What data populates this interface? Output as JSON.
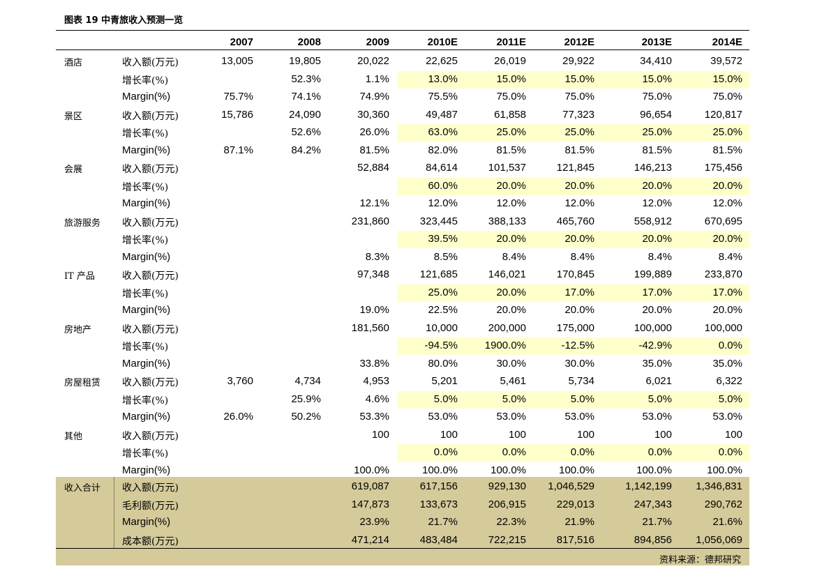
{
  "title": "图表 19  中青旅收入预测一览",
  "columns": [
    "2007",
    "2008",
    "2009",
    "2010E",
    "2011E",
    "2012E",
    "2013E",
    "2014E"
  ],
  "rows": [
    {
      "seg": "酒店",
      "metric": "收入额(万元)",
      "vals": [
        "13,005",
        "19,805",
        "20,022",
        "22,625",
        "26,019",
        "29,922",
        "34,410",
        "39,572"
      ],
      "hl": false
    },
    {
      "seg": "",
      "metric": "增长率(%)",
      "vals": [
        "",
        "52.3%",
        "1.1%",
        "13.0%",
        "15.0%",
        "15.0%",
        "15.0%",
        "15.0%"
      ],
      "hl": true
    },
    {
      "seg": "",
      "metric": "Margin(%)",
      "vals": [
        "75.7%",
        "74.1%",
        "74.9%",
        "75.5%",
        "75.0%",
        "75.0%",
        "75.0%",
        "75.0%"
      ],
      "hl": false
    },
    {
      "seg": "景区",
      "metric": "收入额(万元)",
      "vals": [
        "15,786",
        "24,090",
        "30,360",
        "49,487",
        "61,858",
        "77,323",
        "96,654",
        "120,817"
      ],
      "hl": false
    },
    {
      "seg": "",
      "metric": "增长率(%)",
      "vals": [
        "",
        "52.6%",
        "26.0%",
        "63.0%",
        "25.0%",
        "25.0%",
        "25.0%",
        "25.0%"
      ],
      "hl": true
    },
    {
      "seg": "",
      "metric": "Margin(%)",
      "vals": [
        "87.1%",
        "84.2%",
        "81.5%",
        "82.0%",
        "81.5%",
        "81.5%",
        "81.5%",
        "81.5%"
      ],
      "hl": false
    },
    {
      "seg": "会展",
      "metric": "收入额(万元)",
      "vals": [
        "",
        "",
        "52,884",
        "84,614",
        "101,537",
        "121,845",
        "146,213",
        "175,456"
      ],
      "hl": false
    },
    {
      "seg": "",
      "metric": "增长率(%)",
      "vals": [
        "",
        "",
        "",
        "60.0%",
        "20.0%",
        "20.0%",
        "20.0%",
        "20.0%"
      ],
      "hl": true
    },
    {
      "seg": "",
      "metric": "Margin(%)",
      "vals": [
        "",
        "",
        "12.1%",
        "12.0%",
        "12.0%",
        "12.0%",
        "12.0%",
        "12.0%"
      ],
      "hl": false
    },
    {
      "seg": "旅游服务",
      "metric": "收入额(万元)",
      "vals": [
        "",
        "",
        "231,860",
        "323,445",
        "388,133",
        "465,760",
        "558,912",
        "670,695"
      ],
      "hl": false
    },
    {
      "seg": "",
      "metric": "增长率(%)",
      "vals": [
        "",
        "",
        "",
        "39.5%",
        "20.0%",
        "20.0%",
        "20.0%",
        "20.0%"
      ],
      "hl": true
    },
    {
      "seg": "",
      "metric": "Margin(%)",
      "vals": [
        "",
        "",
        "8.3%",
        "8.5%",
        "8.4%",
        "8.4%",
        "8.4%",
        "8.4%"
      ],
      "hl": false
    },
    {
      "seg": "IT 产品",
      "metric": "收入额(万元)",
      "vals": [
        "",
        "",
        "97,348",
        "121,685",
        "146,021",
        "170,845",
        "199,889",
        "233,870"
      ],
      "hl": false
    },
    {
      "seg": "",
      "metric": "增长率(%)",
      "vals": [
        "",
        "",
        "",
        "25.0%",
        "20.0%",
        "17.0%",
        "17.0%",
        "17.0%"
      ],
      "hl": true
    },
    {
      "seg": "",
      "metric": "Margin(%)",
      "vals": [
        "",
        "",
        "19.0%",
        "22.5%",
        "20.0%",
        "20.0%",
        "20.0%",
        "20.0%"
      ],
      "hl": false
    },
    {
      "seg": "房地产",
      "metric": "收入额(万元)",
      "vals": [
        "",
        "",
        "181,560",
        "10,000",
        "200,000",
        "175,000",
        "100,000",
        "100,000"
      ],
      "hl": false
    },
    {
      "seg": "",
      "metric": "增长率(%)",
      "vals": [
        "",
        "",
        "",
        "-94.5%",
        "1900.0%",
        "-12.5%",
        "-42.9%",
        "0.0%"
      ],
      "hl": true
    },
    {
      "seg": "",
      "metric": "Margin(%)",
      "vals": [
        "",
        "",
        "33.8%",
        "80.0%",
        "30.0%",
        "30.0%",
        "35.0%",
        "35.0%"
      ],
      "hl": false
    },
    {
      "seg": "房屋租赁",
      "metric": "收入额(万元)",
      "vals": [
        "3,760",
        "4,734",
        "4,953",
        "5,201",
        "5,461",
        "5,734",
        "6,021",
        "6,322"
      ],
      "hl": false
    },
    {
      "seg": "",
      "metric": "增长率(%)",
      "vals": [
        "",
        "25.9%",
        "4.6%",
        "5.0%",
        "5.0%",
        "5.0%",
        "5.0%",
        "5.0%"
      ],
      "hl": true
    },
    {
      "seg": "",
      "metric": "Margin(%)",
      "vals": [
        "26.0%",
        "50.2%",
        "53.3%",
        "53.0%",
        "53.0%",
        "53.0%",
        "53.0%",
        "53.0%"
      ],
      "hl": false
    },
    {
      "seg": "其他",
      "metric": "收入额(万元)",
      "vals": [
        "",
        "",
        "100",
        "100",
        "100",
        "100",
        "100",
        "100"
      ],
      "hl": false
    },
    {
      "seg": "",
      "metric": "增长率(%)",
      "vals": [
        "",
        "",
        "",
        "0.0%",
        "0.0%",
        "0.0%",
        "0.0%",
        "0.0%"
      ],
      "hl": true
    },
    {
      "seg": "",
      "metric": "Margin(%)",
      "vals": [
        "",
        "",
        "100.0%",
        "100.0%",
        "100.0%",
        "100.0%",
        "100.0%",
        "100.0%"
      ],
      "hl": false
    }
  ],
  "totals": [
    {
      "seg": "收入合计",
      "metric": "收入额(万元)",
      "vals": [
        "",
        "",
        "619,087",
        "617,156",
        "929,130",
        "1,046,529",
        "1,142,199",
        "1,346,831"
      ]
    },
    {
      "seg": "",
      "metric": "毛利额(万元)",
      "vals": [
        "",
        "",
        "147,873",
        "133,673",
        "206,915",
        "229,013",
        "247,343",
        "290,762"
      ]
    },
    {
      "seg": "",
      "metric": "Margin(%)",
      "vals": [
        "",
        "",
        "23.9%",
        "21.7%",
        "22.3%",
        "21.9%",
        "21.7%",
        "21.6%"
      ]
    },
    {
      "seg": "",
      "metric": "成本额(万元)",
      "vals": [
        "",
        "",
        "471,214",
        "483,484",
        "722,215",
        "817,516",
        "894,856",
        "1,056,069"
      ]
    }
  ],
  "source": "资料来源：德邦研究",
  "colors": {
    "highlight": "#ffffcc",
    "total_band": "#d4ca9a"
  }
}
